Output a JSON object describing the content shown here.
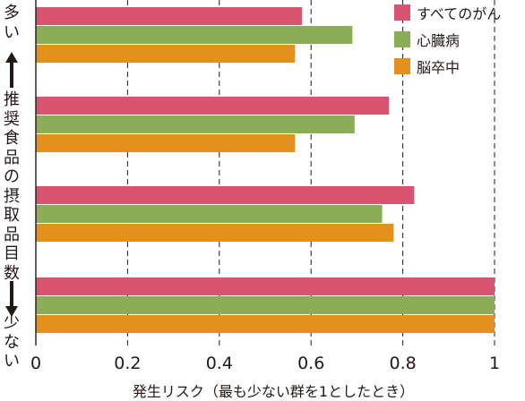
{
  "chart_data": {
    "type": "bar",
    "orientation": "horizontal",
    "categories": [
      "多い",
      "",
      "",
      "少ない"
    ],
    "series": [
      {
        "name": "すべてのがん",
        "color": "#d95470",
        "values": [
          0.58,
          0.77,
          0.825,
          1.0
        ]
      },
      {
        "name": "心臓病",
        "color": "#8bad57",
        "values": [
          0.69,
          0.695,
          0.755,
          1.0
        ]
      },
      {
        "name": "脳卒中",
        "color": "#e3901f",
        "values": [
          0.565,
          0.565,
          0.78,
          1.0
        ]
      }
    ],
    "xlim": [
      0,
      1
    ],
    "xticks": [
      "0",
      "0.2",
      "0.4",
      "0.6",
      "0.8",
      "1"
    ],
    "xlabel": "発生リスク（最も少ない群を1としたとき）",
    "ylabel": {
      "top": "多い",
      "middle": "推奨食品の摂取品目数",
      "bottom": "少ない"
    },
    "grid": "vertical dashed",
    "legend_position": "top-right"
  }
}
